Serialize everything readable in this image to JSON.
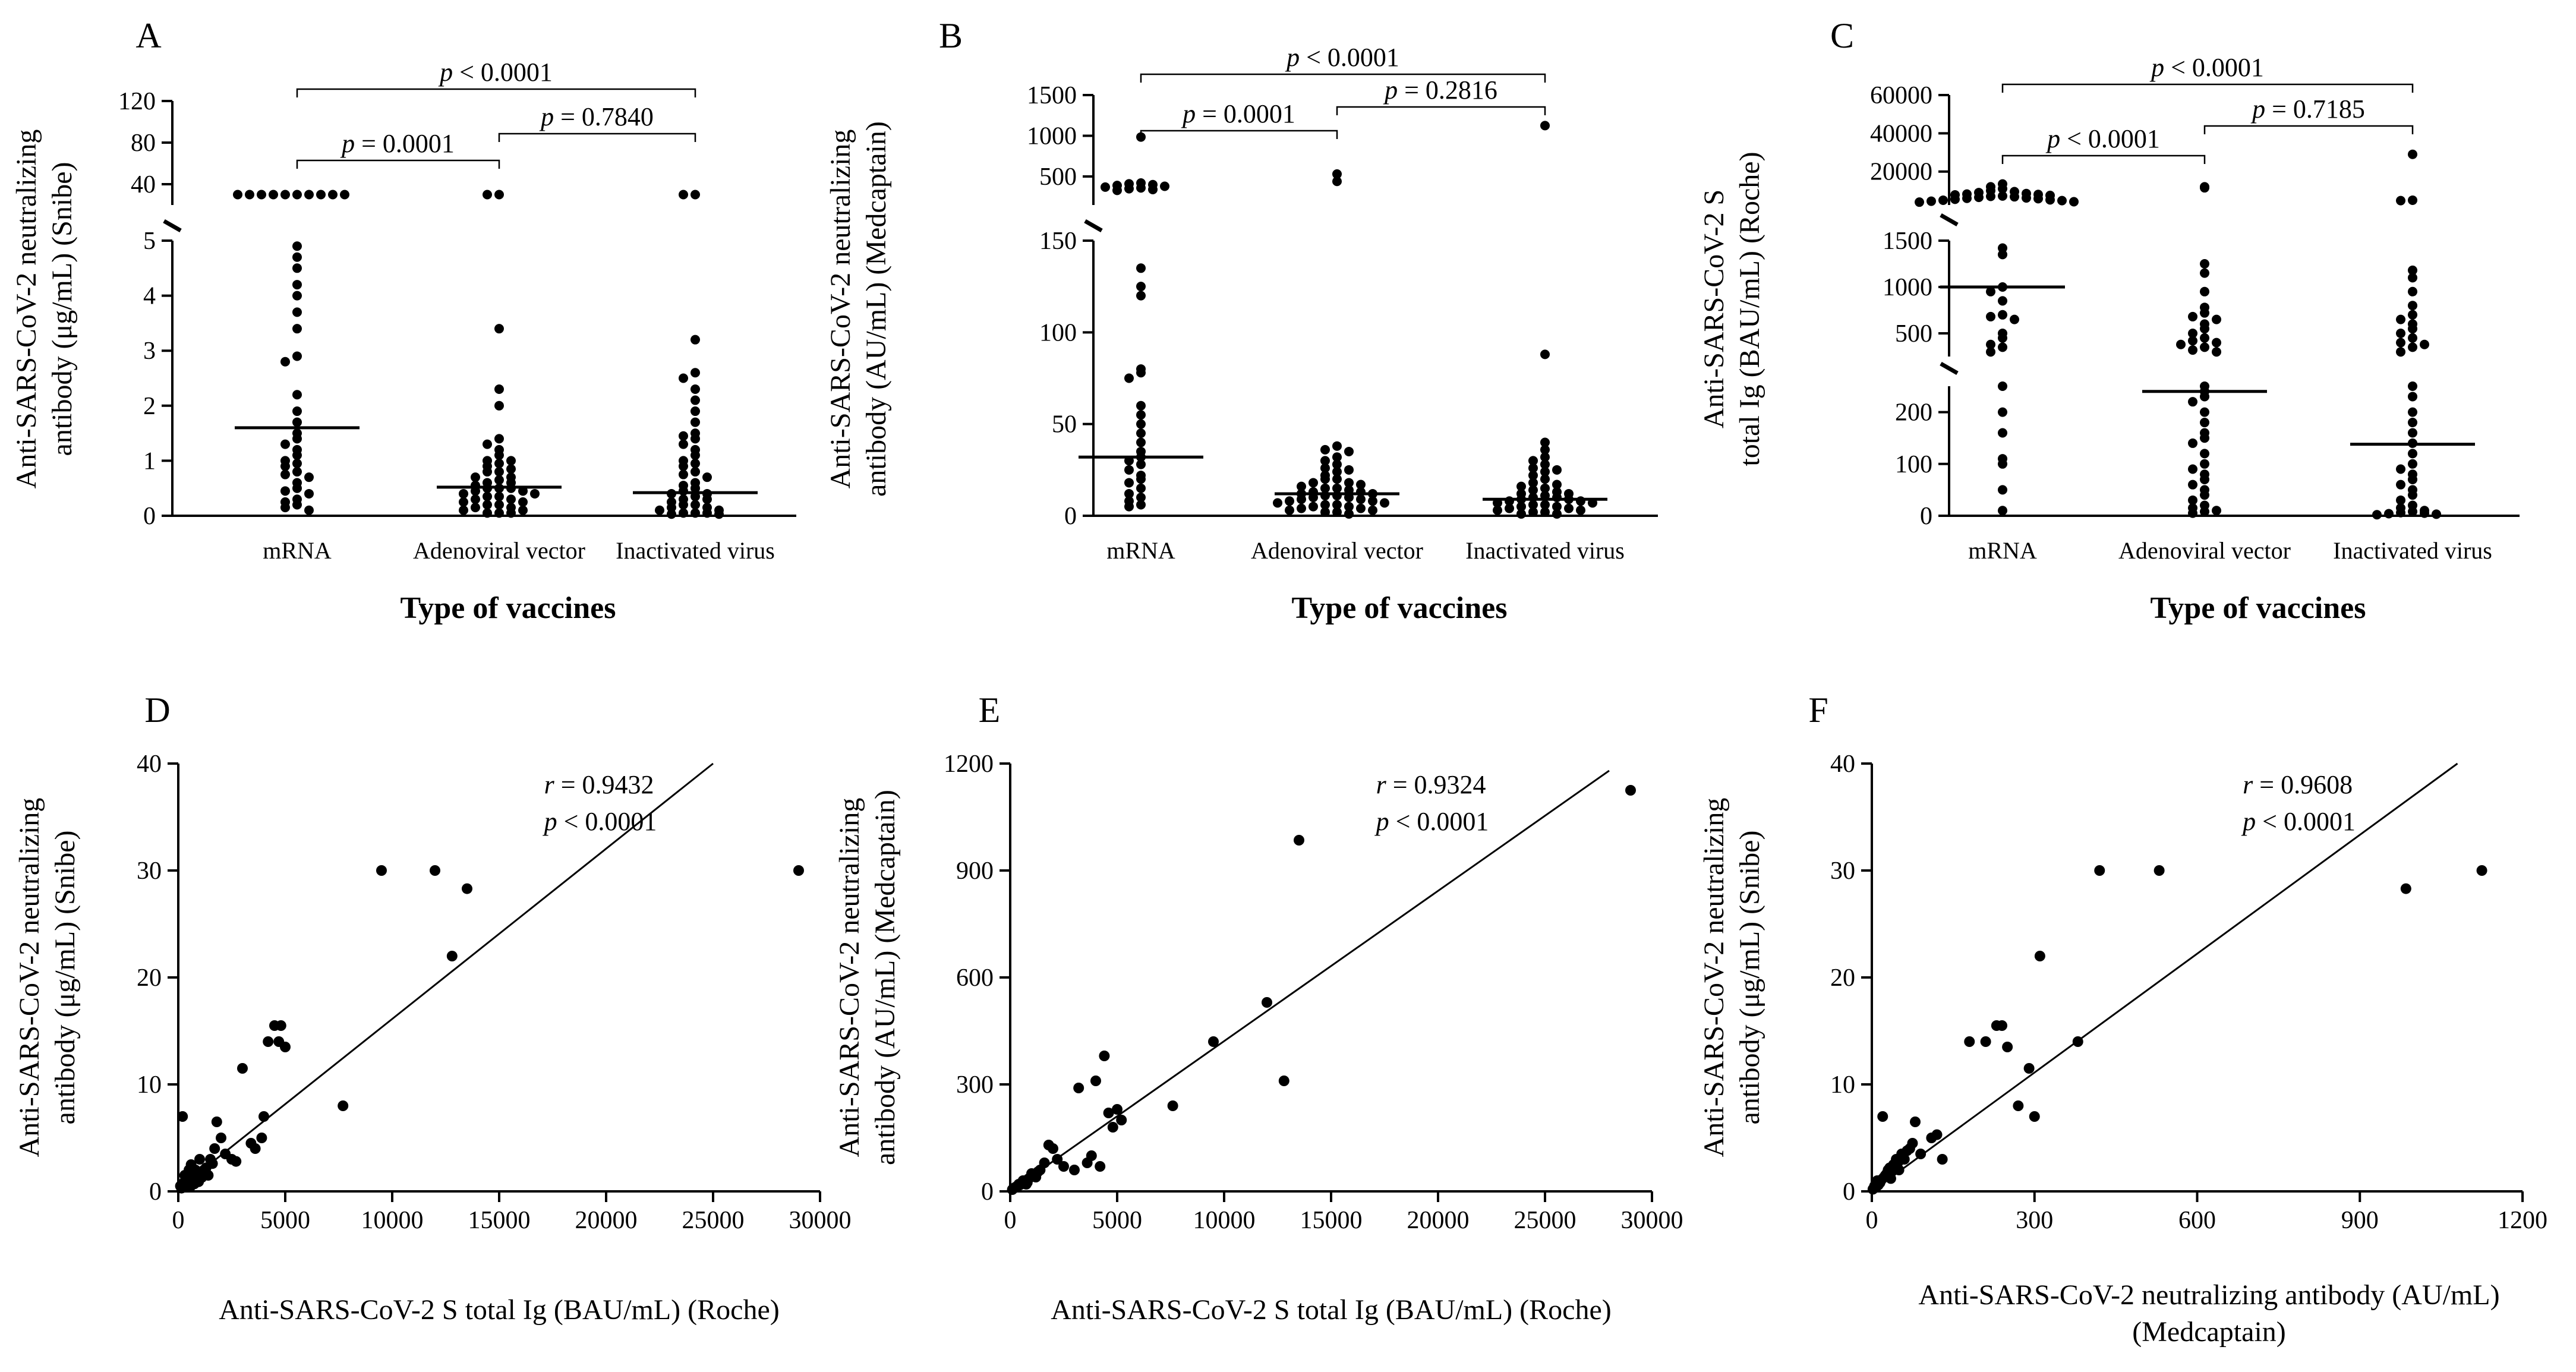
{
  "chart_data": [
    {
      "panel": "A",
      "type": "scatter",
      "categories": [
        "mRNA",
        "Adenoviral vector",
        "Inactivated virus"
      ],
      "xlabel": "Type of vaccines",
      "ylabel_lines": [
        "Anti-SARS-CoV-2 neutralizing",
        "antibody (μg/mL) (Snibe)"
      ],
      "segments": [
        {
          "range": [
            0,
            5
          ],
          "ticks": [
            "0",
            "1",
            "2",
            "3",
            "4",
            "5"
          ]
        },
        {
          "range": [
            20,
            120
          ],
          "ticks": [
            "40",
            "80",
            "120"
          ]
        }
      ],
      "medians": [
        1.6,
        0.52,
        0.42
      ],
      "comparisons": [
        {
          "from": 0,
          "to": 1,
          "text": "= 0.0001"
        },
        {
          "from": 1,
          "to": 2,
          "text": "= 0.7840"
        },
        {
          "from": 0,
          "to": 2,
          "text": "< 0.0001"
        }
      ],
      "points": [
        [
          30,
          30,
          30,
          30,
          30,
          30,
          30,
          30,
          30,
          30,
          4.9,
          4.7,
          4.5,
          4.2,
          4.0,
          3.7,
          3.4,
          2.9,
          2.8,
          2.2,
          1.9,
          1.7,
          1.5,
          1.4,
          1.3,
          1.2,
          1.1,
          1.0,
          0.95,
          0.9,
          0.8,
          0.75,
          0.7,
          0.6,
          0.5,
          0.45,
          0.4,
          0.3,
          0.25,
          0.2,
          0.15,
          0.1
        ],
        [
          30,
          30,
          3.4,
          2.3,
          2.0,
          1.4,
          1.3,
          1.2,
          1.1,
          1.0,
          1.0,
          0.95,
          0.9,
          0.85,
          0.8,
          0.8,
          0.7,
          0.7,
          0.65,
          0.6,
          0.6,
          0.55,
          0.5,
          0.5,
          0.5,
          0.45,
          0.45,
          0.4,
          0.4,
          0.35,
          0.35,
          0.3,
          0.3,
          0.25,
          0.25,
          0.2,
          0.2,
          0.15,
          0.15,
          0.1,
          0.1,
          0.05,
          0.05,
          0.05
        ],
        [
          30,
          30,
          3.2,
          2.6,
          2.5,
          2.3,
          2.1,
          1.9,
          1.7,
          1.5,
          1.45,
          1.4,
          1.3,
          1.2,
          1.1,
          1.0,
          0.95,
          0.9,
          0.8,
          0.75,
          0.7,
          0.6,
          0.55,
          0.5,
          0.45,
          0.4,
          0.4,
          0.35,
          0.3,
          0.3,
          0.25,
          0.2,
          0.2,
          0.15,
          0.15,
          0.1,
          0.1,
          0.05,
          0.05,
          0.05,
          0.03,
          0.03
        ]
      ]
    },
    {
      "panel": "B",
      "type": "scatter",
      "categories": [
        "mRNA",
        "Adenoviral vector",
        "Inactivated virus"
      ],
      "xlabel": "Type of vaccines",
      "ylabel_lines": [
        "Anti-SARS-CoV-2 neutralizing",
        "antibody (AU/mL) (Medcaptain)"
      ],
      "segments": [
        {
          "range": [
            0,
            150
          ],
          "ticks": [
            "0",
            "50",
            "100",
            "150"
          ]
        },
        {
          "range": [
            150,
            1500
          ],
          "ticks": [
            "500",
            "1000",
            "1500"
          ]
        }
      ],
      "medians": [
        32,
        12,
        9
      ],
      "comparisons": [
        {
          "from": 0,
          "to": 1,
          "text": "= 0.0001"
        },
        {
          "from": 1,
          "to": 2,
          "text": "= 0.2816"
        },
        {
          "from": 0,
          "to": 2,
          "text": "< 0.0001"
        }
      ],
      "points": [
        [
          985,
          420,
          410,
          400,
          390,
          380,
          370,
          360,
          350,
          340,
          330,
          135,
          125,
          120,
          80,
          78,
          75,
          60,
          55,
          50,
          45,
          40,
          35,
          32,
          30,
          28,
          25,
          22,
          20,
          18,
          15,
          12,
          10,
          8,
          6,
          5
        ],
        [
          530,
          440,
          38,
          36,
          35,
          32,
          30,
          28,
          26,
          25,
          24,
          22,
          20,
          20,
          18,
          18,
          17,
          16,
          15,
          15,
          14,
          13,
          13,
          12,
          12,
          11,
          11,
          10,
          10,
          9,
          9,
          8,
          8,
          7,
          7,
          6,
          6,
          5,
          5,
          4,
          4,
          3,
          3,
          2,
          2,
          1
        ],
        [
          1125,
          88,
          40,
          36,
          32,
          30,
          28,
          26,
          25,
          24,
          22,
          20,
          18,
          17,
          16,
          15,
          14,
          13,
          12,
          12,
          11,
          10,
          10,
          9,
          9,
          8,
          8,
          7,
          7,
          6,
          6,
          5,
          5,
          4,
          4,
          3,
          3,
          2,
          2,
          1,
          1
        ]
      ]
    },
    {
      "panel": "C",
      "type": "scatter",
      "categories": [
        "mRNA",
        "Adenoviral vector",
        "Inactivated virus"
      ],
      "xlabel": "Type of vaccines",
      "ylabel_lines": [
        "Anti-SARS-CoV-2 S",
        "total Ig (BAU/mL) (Roche)"
      ],
      "segments": [
        {
          "range": [
            0,
            250
          ],
          "ticks": [
            "0",
            "100",
            "200"
          ]
        },
        {
          "range": [
            250,
            1500
          ],
          "ticks": [
            "500",
            "1000",
            "1500"
          ]
        },
        {
          "range": [
            2500,
            60000
          ],
          "ticks": [
            "20000",
            "40000",
            "60000"
          ]
        }
      ],
      "medians": [
        1000,
        240,
        138
      ],
      "comparisons": [
        {
          "from": 0,
          "to": 1,
          "text": "< 0.0001"
        },
        {
          "from": 1,
          "to": 2,
          "text": "= 0.7185"
        },
        {
          "from": 0,
          "to": 2,
          "text": "< 0.0001"
        }
      ],
      "points": [
        [
          13500,
          12000,
          11000,
          10000,
          9500,
          9000,
          8500,
          8200,
          8000,
          7800,
          7500,
          7200,
          7000,
          6800,
          6500,
          6200,
          6000,
          5800,
          5500,
          5200,
          5000,
          4800,
          4500,
          4200,
          4000,
          1420,
          1350,
          1000,
          950,
          850,
          700,
          680,
          650,
          500,
          450,
          380,
          350,
          300,
          250,
          200,
          160,
          110,
          100,
          50,
          10
        ],
        [
          12000,
          11500,
          1250,
          1150,
          950,
          780,
          720,
          680,
          650,
          600,
          550,
          500,
          450,
          420,
          400,
          380,
          350,
          320,
          300,
          250,
          240,
          230,
          220,
          200,
          180,
          160,
          150,
          140,
          120,
          100,
          90,
          80,
          70,
          60,
          50,
          40,
          30,
          20,
          15,
          10,
          8,
          5
        ],
        [
          29000,
          5000,
          4800,
          1180,
          1100,
          950,
          800,
          700,
          650,
          600,
          550,
          500,
          450,
          400,
          380,
          350,
          300,
          250,
          230,
          200,
          180,
          160,
          140,
          120,
          100,
          90,
          80,
          70,
          60,
          50,
          40,
          30,
          20,
          15,
          10,
          8,
          6,
          5,
          4,
          3,
          2
        ]
      ]
    },
    {
      "panel": "D",
      "type": "scatter",
      "xlabel": "Anti-SARS-CoV-2 S total Ig (BAU/mL) (Roche)",
      "ylabel_lines": [
        "Anti-SARS-CoV-2 neutralizing",
        "antibody (μg/mL) (Snibe)"
      ],
      "xlim": [
        0,
        30000
      ],
      "ylim": [
        0,
        40
      ],
      "xticks": [
        "0",
        "5000",
        "10000",
        "15000",
        "20000",
        "25000",
        "30000"
      ],
      "yticks": [
        "0",
        "10",
        "20",
        "30",
        "40"
      ],
      "annotation": {
        "r": "= 0.9432",
        "p": "< 0.0001"
      },
      "fit_line": [
        [
          0,
          0.2
        ],
        [
          25000,
          40
        ]
      ],
      "points": [
        [
          200,
          7
        ],
        [
          300,
          1.5
        ],
        [
          400,
          1
        ],
        [
          500,
          2
        ],
        [
          600,
          2.5
        ],
        [
          700,
          1.8
        ],
        [
          800,
          2
        ],
        [
          900,
          1.5
        ],
        [
          1000,
          3
        ],
        [
          1200,
          2
        ],
        [
          1400,
          1.5
        ],
        [
          1500,
          3
        ],
        [
          1800,
          6.5
        ],
        [
          2000,
          5
        ],
        [
          2200,
          3.5
        ],
        [
          2500,
          3
        ],
        [
          2700,
          2.8
        ],
        [
          3000,
          11.5
        ],
        [
          3400,
          4.5
        ],
        [
          3600,
          4
        ],
        [
          3900,
          5
        ],
        [
          4000,
          7
        ],
        [
          4200,
          14
        ],
        [
          4500,
          15.5
        ],
        [
          4700,
          14
        ],
        [
          4800,
          15.5
        ],
        [
          5000,
          13.5
        ],
        [
          7700,
          8
        ],
        [
          9500,
          30
        ],
        [
          12000,
          30
        ],
        [
          12800,
          22
        ],
        [
          13500,
          28.3
        ],
        [
          29000,
          30
        ],
        [
          100,
          0.5
        ],
        [
          150,
          0.3
        ],
        [
          250,
          0.8
        ],
        [
          350,
          0.6
        ],
        [
          450,
          1.2
        ],
        [
          550,
          0.4
        ],
        [
          650,
          1
        ],
        [
          750,
          0.7
        ],
        [
          850,
          1.2
        ],
        [
          950,
          0.9
        ],
        [
          1100,
          1.3
        ],
        [
          1300,
          2.2
        ],
        [
          1600,
          2.6
        ],
        [
          1700,
          4
        ]
      ]
    },
    {
      "panel": "E",
      "type": "scatter",
      "xlabel": "Anti-SARS-CoV-2 S total Ig (BAU/mL) (Roche)",
      "ylabel_lines": [
        "Anti-SARS-CoV-2 neutralizing",
        "antibody (AU/mL) (Medcaptain)"
      ],
      "xlim": [
        0,
        30000
      ],
      "ylim": [
        0,
        1200
      ],
      "xticks": [
        "0",
        "5000",
        "10000",
        "15000",
        "20000",
        "25000",
        "30000"
      ],
      "yticks": [
        "0",
        "300",
        "600",
        "900",
        "1200"
      ],
      "annotation": {
        "r": "= 0.9324",
        "p": "< 0.0001"
      },
      "fit_line": [
        [
          0,
          0
        ],
        [
          28000,
          1180
        ]
      ],
      "points": [
        [
          200,
          10
        ],
        [
          400,
          20
        ],
        [
          600,
          30
        ],
        [
          800,
          25
        ],
        [
          1000,
          50
        ],
        [
          1200,
          40
        ],
        [
          1400,
          60
        ],
        [
          1600,
          80
        ],
        [
          1800,
          130
        ],
        [
          2000,
          120
        ],
        [
          2200,
          90
        ],
        [
          2500,
          70
        ],
        [
          3000,
          60
        ],
        [
          3200,
          290
        ],
        [
          3600,
          80
        ],
        [
          3800,
          100
        ],
        [
          4000,
          310
        ],
        [
          4200,
          70
        ],
        [
          4400,
          380
        ],
        [
          4600,
          220
        ],
        [
          4800,
          180
        ],
        [
          5000,
          230
        ],
        [
          5200,
          200
        ],
        [
          7600,
          240
        ],
        [
          9500,
          420
        ],
        [
          12000,
          530
        ],
        [
          12800,
          310
        ],
        [
          13500,
          985
        ],
        [
          29000,
          1125
        ],
        [
          100,
          5
        ],
        [
          150,
          8
        ],
        [
          250,
          12
        ],
        [
          350,
          15
        ],
        [
          450,
          18
        ],
        [
          550,
          22
        ],
        [
          650,
          28
        ],
        [
          750,
          20
        ],
        [
          850,
          35
        ],
        [
          950,
          40
        ],
        [
          1100,
          45
        ],
        [
          1300,
          55
        ]
      ]
    },
    {
      "panel": "F",
      "type": "scatter",
      "xlabel_lines": [
        "Anti-SARS-CoV-2 neutralizing antibody (AU/mL)",
        "(Medcaptain)"
      ],
      "ylabel_lines": [
        "Anti-SARS-CoV-2 neutralizing",
        "antibody (μg/mL) (Snibe)"
      ],
      "xlim": [
        0,
        1200
      ],
      "ylim": [
        0,
        40
      ],
      "xticks": [
        "0",
        "300",
        "600",
        "900",
        "1200"
      ],
      "yticks": [
        "0",
        "10",
        "20",
        "30",
        "40"
      ],
      "annotation": {
        "r": "= 0.9608",
        "p": "< 0.0001"
      },
      "fit_line": [
        [
          0,
          0
        ],
        [
          1080,
          40
        ]
      ],
      "points": [
        [
          5,
          0.5
        ],
        [
          10,
          1
        ],
        [
          15,
          0.8
        ],
        [
          20,
          7
        ],
        [
          25,
          1.5
        ],
        [
          30,
          2
        ],
        [
          35,
          1.2
        ],
        [
          40,
          2.5
        ],
        [
          45,
          3
        ],
        [
          50,
          2
        ],
        [
          55,
          3.5
        ],
        [
          60,
          3
        ],
        [
          70,
          4
        ],
        [
          75,
          4.5
        ],
        [
          80,
          6.5
        ],
        [
          90,
          3.5
        ],
        [
          110,
          5
        ],
        [
          120,
          5.3
        ],
        [
          130,
          3
        ],
        [
          180,
          14
        ],
        [
          210,
          14
        ],
        [
          230,
          15.5
        ],
        [
          240,
          15.5
        ],
        [
          250,
          13.5
        ],
        [
          270,
          8
        ],
        [
          290,
          11.5
        ],
        [
          300,
          7
        ],
        [
          310,
          22
        ],
        [
          380,
          14
        ],
        [
          420,
          30
        ],
        [
          530,
          30
        ],
        [
          985,
          28.3
        ],
        [
          1125,
          30
        ],
        [
          2,
          0.2
        ],
        [
          8,
          0.4
        ],
        [
          12,
          0.6
        ],
        [
          18,
          1.1
        ],
        [
          22,
          1.3
        ],
        [
          28,
          1.7
        ],
        [
          33,
          2.2
        ],
        [
          38,
          1.9
        ],
        [
          48,
          2.7
        ],
        [
          65,
          3.8
        ]
      ]
    }
  ]
}
